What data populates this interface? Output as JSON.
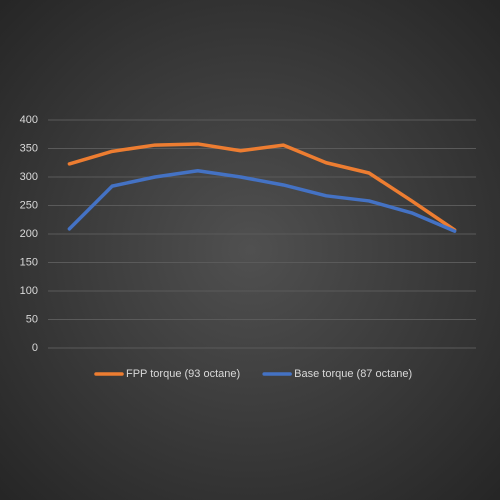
{
  "chart_data": {
    "type": "line",
    "categories": [
      null,
      null,
      null,
      null,
      null,
      null,
      null,
      null,
      null,
      null
    ],
    "series": [
      {
        "name": "FPP torque (93 octane)",
        "color": "#ed7d31",
        "values": [
          323,
          345,
          356,
          358,
          346,
          356,
          325,
          307,
          258,
          207
        ]
      },
      {
        "name": "Base torque (87 octane)",
        "color": "#4472c4",
        "values": [
          209,
          284,
          300,
          311,
          300,
          286,
          267,
          258,
          237,
          205
        ]
      }
    ],
    "ylim": [
      0,
      400
    ],
    "yticks": [
      0,
      50,
      100,
      150,
      200,
      250,
      300,
      350,
      400
    ],
    "grid": true,
    "legend": "bottom"
  }
}
